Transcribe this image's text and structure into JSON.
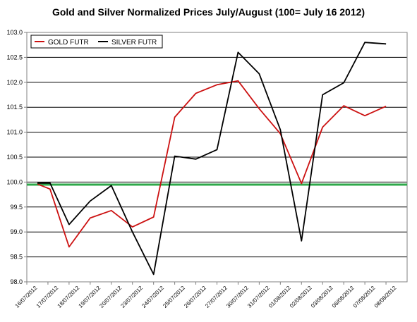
{
  "chart_data": {
    "type": "line",
    "title": "Gold and Silver Normalized Prices July/August (100= July 16 2012)",
    "xlabel": "",
    "ylabel": "",
    "ylim": [
      98.0,
      103.0
    ],
    "y_ticks": [
      "98.0",
      "98.5",
      "99.0",
      "99.5",
      "100.0",
      "100.5",
      "101.0",
      "101.5",
      "102.0",
      "102.5",
      "103.0"
    ],
    "grid": "horizontal",
    "legend_position": "top-left",
    "reference_line": {
      "value": 99.95,
      "color": "#2ea84a"
    },
    "categories": [
      "16/07/2012",
      "17/07/2012",
      "18/07/2012",
      "19/07/2012",
      "20/07/2012",
      "23/07/2012",
      "24/07/2012",
      "25/07/2012",
      "26/07/2012",
      "27/07/2012",
      "30/07/2012",
      "31/07/2012",
      "01/08/2012",
      "02/08/2012",
      "03/08/2012",
      "06/08/2012",
      "07/08/2012",
      "08/08/2012"
    ],
    "points": [
      [
        0,
        99.96,
        99.98
      ],
      [
        0.6,
        99.86,
        99.98
      ],
      [
        1.5,
        98.7,
        99.15
      ],
      [
        2.5,
        99.28,
        99.62
      ],
      [
        3.5,
        99.43,
        99.93
      ],
      [
        4.5,
        99.1,
        99.0
      ],
      [
        5.5,
        99.3,
        98.15
      ],
      [
        6.5,
        101.3,
        100.52
      ],
      [
        7.5,
        101.78,
        100.46
      ],
      [
        8.5,
        101.95,
        100.65
      ],
      [
        9.5,
        102.03,
        102.6
      ],
      [
        10.5,
        101.47,
        102.17
      ],
      [
        11.5,
        100.97,
        101.05
      ],
      [
        12.5,
        99.97,
        98.82
      ],
      [
        13.5,
        101.1,
        101.75
      ],
      [
        14.5,
        101.53,
        101.99
      ],
      [
        15.5,
        101.33,
        102.8
      ],
      [
        16.5,
        101.52,
        102.77
      ]
    ],
    "series": [
      {
        "name": "GOLD  FUTR",
        "color": "#cc1111"
      },
      {
        "name": "SILVER  FUTR",
        "color": "#000000"
      }
    ]
  }
}
